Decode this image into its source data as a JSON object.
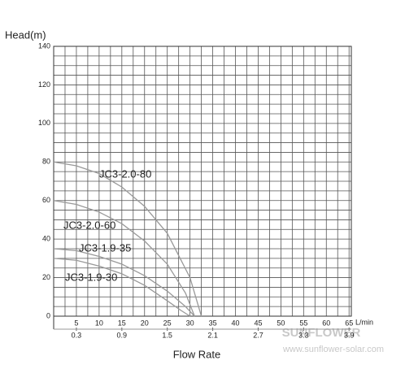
{
  "chart_data": {
    "type": "line",
    "y_label": "Head(m)",
    "x_label": "Flow Rate",
    "x_unit": "L/min",
    "xlim": [
      0,
      65.5
    ],
    "ylim": [
      0,
      140
    ],
    "xticks": [
      5,
      10,
      15,
      20,
      25,
      30,
      35,
      40,
      45,
      50,
      55,
      60,
      65
    ],
    "yticks": [
      0,
      20,
      40,
      60,
      80,
      100,
      120,
      140
    ],
    "x2ticks": [
      {
        "value": 5,
        "label": "0.3"
      },
      {
        "value": 15,
        "label": "0.9"
      },
      {
        "value": 25,
        "label": "1.5"
      },
      {
        "value": 35,
        "label": "2.1"
      },
      {
        "value": 45,
        "label": "2.7"
      },
      {
        "value": 55,
        "label": "3.3"
      },
      {
        "value": 65,
        "label": "3.9"
      }
    ],
    "grid": true,
    "series": [
      {
        "name": "JC3-2.0-80",
        "color": "#999999",
        "x": [
          0,
          5,
          10,
          15,
          20,
          25,
          30,
          32.5
        ],
        "values": [
          80,
          78,
          74,
          67,
          57,
          43,
          20,
          0
        ]
      },
      {
        "name": "JC3-2.0-60",
        "color": "#999999",
        "x": [
          0,
          5,
          10,
          15,
          20,
          25,
          29,
          31
        ],
        "values": [
          60,
          58,
          54,
          48,
          39,
          27,
          12,
          0
        ]
      },
      {
        "name": "JC3-1.9-35",
        "color": "#999999",
        "x": [
          0,
          5,
          10,
          15,
          20,
          25,
          29,
          31
        ],
        "values": [
          35,
          34,
          31,
          27,
          21,
          13,
          5,
          0
        ]
      },
      {
        "name": "JC3-1.9-30",
        "color": "#999999",
        "x": [
          0,
          5,
          10,
          15,
          20,
          25,
          28,
          30
        ],
        "values": [
          30,
          29,
          26,
          22,
          16,
          8,
          3,
          0
        ]
      }
    ],
    "watermark": [
      "SUNFLOWER",
      "www.sunflower-solar.com"
    ]
  }
}
